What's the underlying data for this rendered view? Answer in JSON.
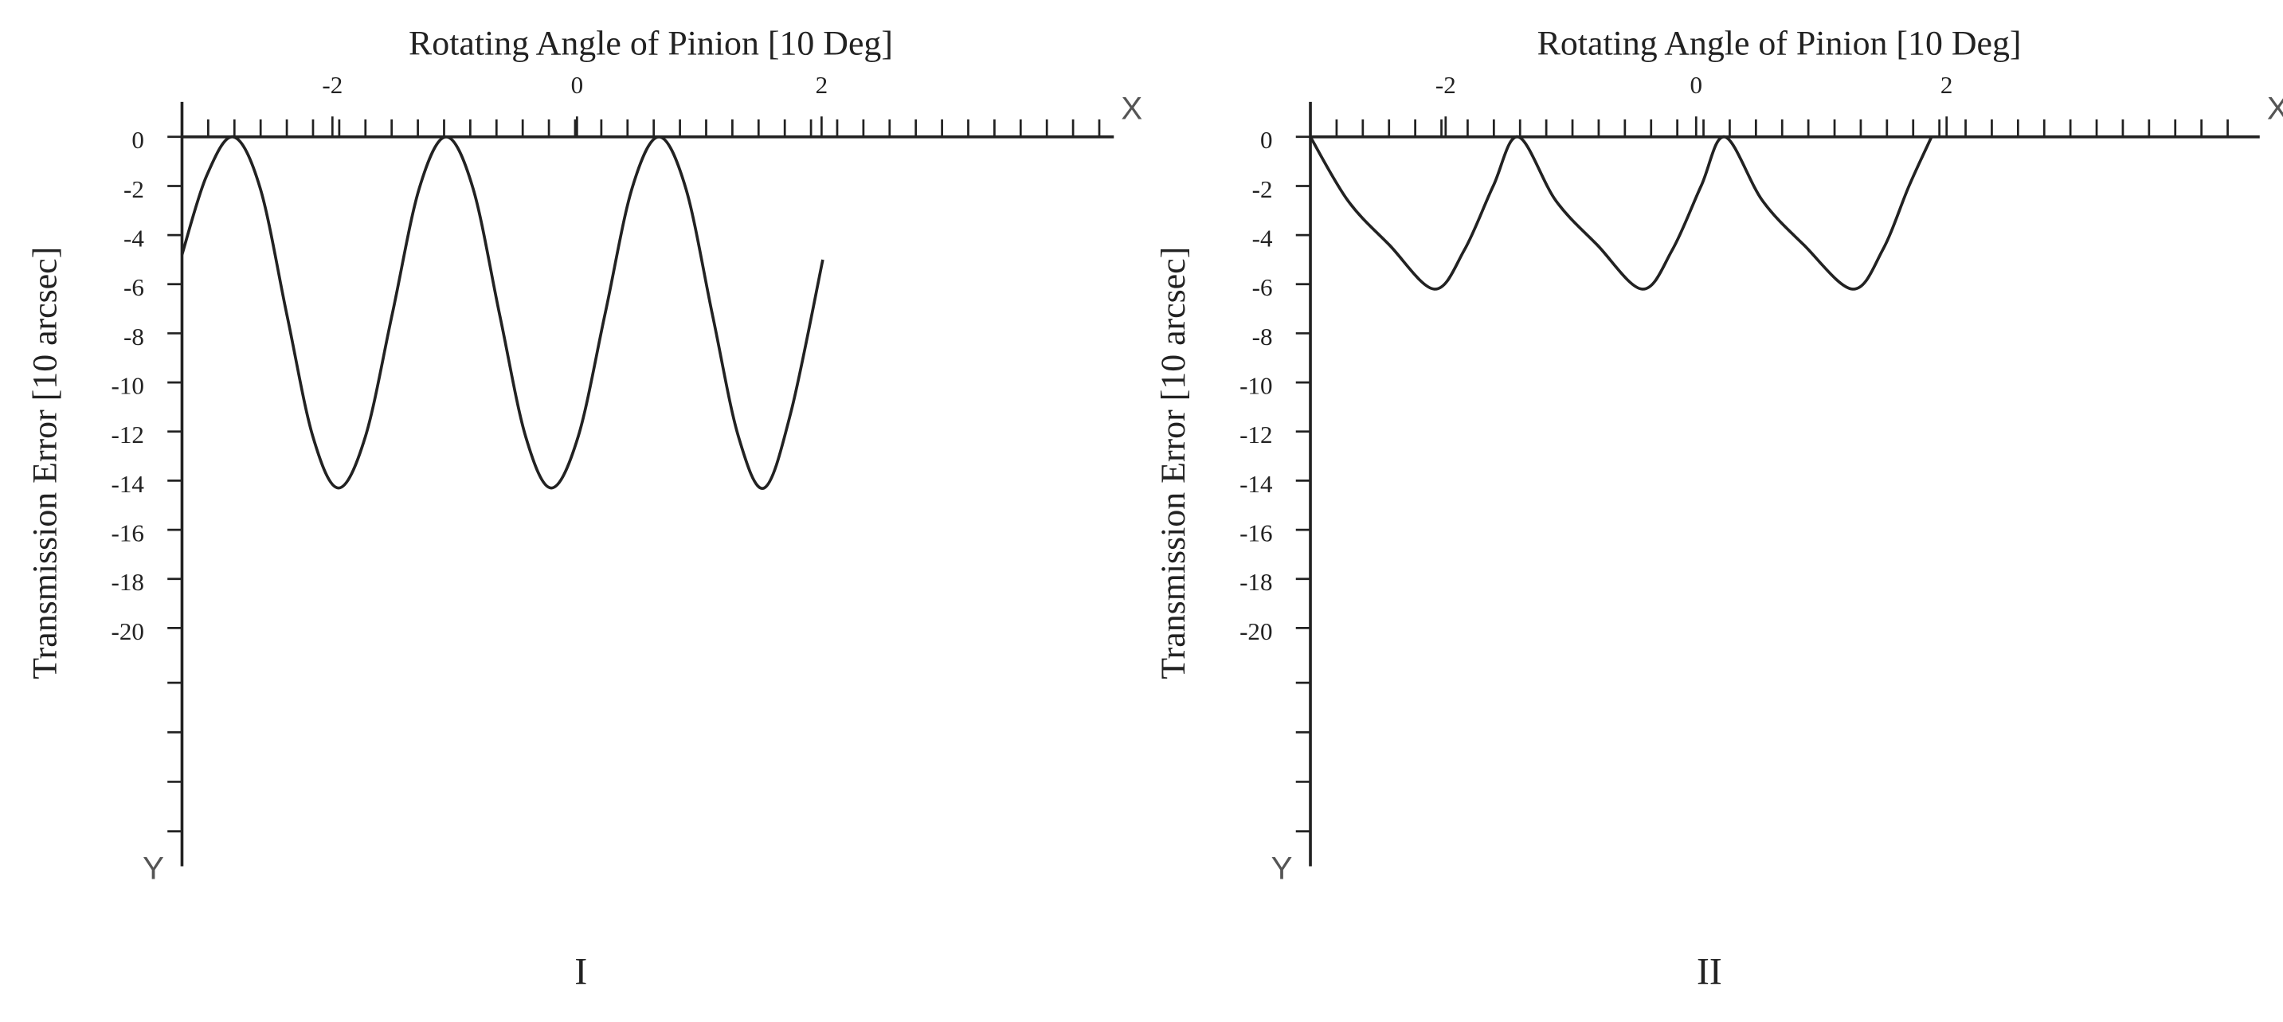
{
  "chart_data": [
    {
      "type": "line",
      "title": "Rotating Angle of Pinion [10 Deg]",
      "ylabel": "Transmission Error [10 arcsec]",
      "x_axis_letter": "X",
      "y_axis_letter": "Y",
      "caption": "I",
      "xlim": [
        -3.23,
        4.39
      ],
      "xticks": [
        -2,
        0,
        2
      ],
      "ylim": [
        -29.7,
        0
      ],
      "yticks": [
        0,
        -2,
        -4,
        -6,
        -8,
        -10,
        -12,
        -14,
        -16,
        -18,
        -20
      ],
      "series": [
        {
          "color": "#222222",
          "x": [
            -3.23,
            -3.03,
            -2.81,
            -2.59,
            -2.37,
            -2.16,
            -1.95,
            -1.73,
            -1.51,
            -1.29,
            -1.07,
            -0.85,
            -0.63,
            -0.42,
            -0.21,
            0.01,
            0.23,
            0.45,
            0.67,
            0.89,
            1.11,
            1.32,
            1.53,
            1.75,
            2.01
          ],
          "values": [
            -4.8,
            -1.6,
            0,
            -2.1,
            -7.3,
            -12.2,
            -14.3,
            -12.2,
            -7.2,
            -2.1,
            0,
            -2.1,
            -7.3,
            -12.2,
            -14.3,
            -12.2,
            -7.2,
            -2.1,
            0,
            -2.1,
            -7.3,
            -12.2,
            -14.3,
            -11.2,
            -5.0
          ]
        }
      ]
    },
    {
      "type": "line",
      "title": "Rotating Angle of Pinion [10 Deg]",
      "ylabel": "Transmission Error [10 arcsec]",
      "x_axis_letter": "X",
      "y_axis_letter": "Y",
      "caption": "II",
      "xlim": [
        -3.08,
        4.5
      ],
      "xticks": [
        -2,
        0,
        2
      ],
      "ylim": [
        -29.7,
        0
      ],
      "yticks": [
        0,
        -2,
        -4,
        -6,
        -8,
        -10,
        -12,
        -14,
        -16,
        -18,
        -20
      ],
      "series": [
        {
          "color": "#222222",
          "x": [
            -3.08,
            -2.78,
            -2.45,
            -2.09,
            -1.85,
            -1.62,
            -1.42,
            -1.12,
            -0.79,
            -0.43,
            -0.19,
            0.04,
            0.23,
            0.53,
            0.86,
            1.25,
            1.49,
            1.7,
            1.88
          ],
          "values": [
            0,
            -2.6,
            -4.4,
            -6.2,
            -4.6,
            -2.0,
            0,
            -2.6,
            -4.4,
            -6.2,
            -4.6,
            -2.0,
            0,
            -2.6,
            -4.4,
            -6.2,
            -4.6,
            -2.0,
            0
          ]
        }
      ]
    }
  ]
}
